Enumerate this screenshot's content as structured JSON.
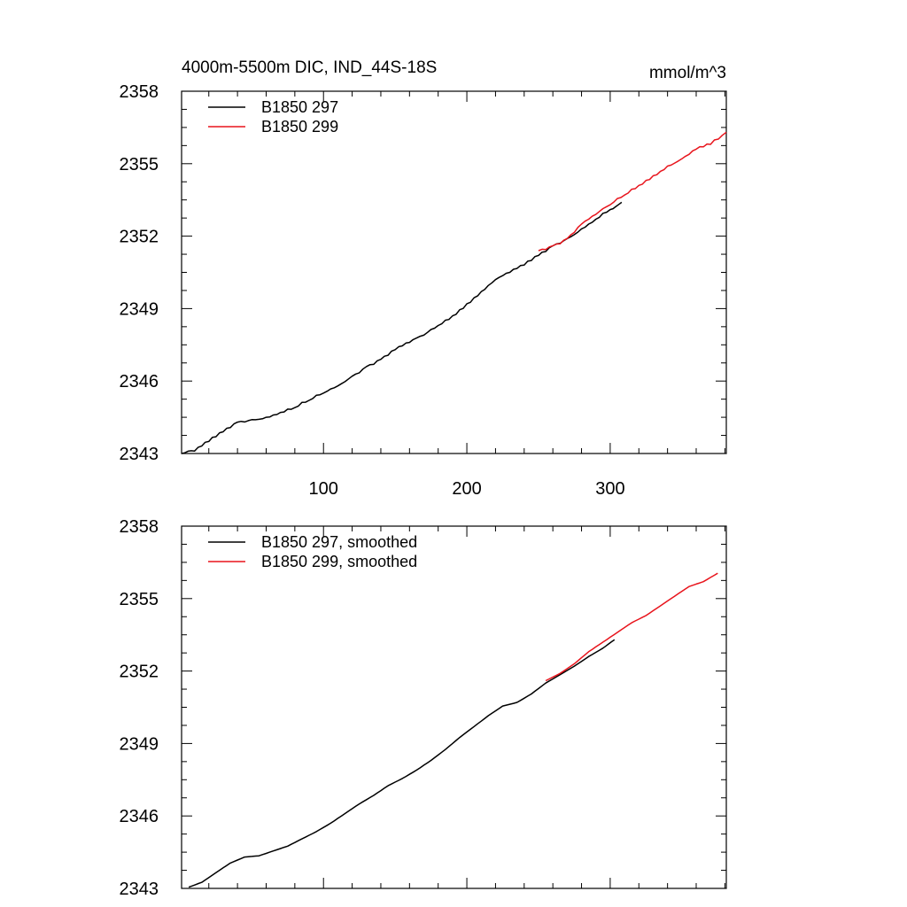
{
  "colors": {
    "run_297": "#000000",
    "run_299": "#e8141c"
  },
  "panels": [
    {
      "title_left": "4000m-5500m DIC, IND_44S-18S",
      "title_right": "mmol/m^3",
      "y_tick_labels": [
        "2343",
        "2346",
        "2349",
        "2352",
        "2355",
        "2358"
      ],
      "x_tick_labels": [
        "100",
        "200",
        "300"
      ],
      "legend": [
        "B1850 297",
        "B1850 299"
      ]
    },
    {
      "title_left": "",
      "title_right": "",
      "y_tick_labels": [
        "2343",
        "2346",
        "2349",
        "2352",
        "2355",
        "2358"
      ],
      "x_tick_labels": [],
      "legend": [
        "B1850 297, smoothed",
        "B1850 299, smoothed"
      ]
    }
  ],
  "chart_data": [
    {
      "type": "line",
      "title": "4000m-5500m DIC, IND_44S-18S",
      "units": "mmol/m^3",
      "xlim": [
        1,
        381
      ],
      "ylim": [
        2343,
        2358
      ],
      "x_ticks": [
        100,
        200,
        300
      ],
      "y_ticks": [
        2343,
        2346,
        2349,
        2352,
        2355,
        2358
      ],
      "legend_position": "top-left",
      "series": [
        {
          "name": "B1850 297",
          "color": "#000000",
          "x": [
            1,
            10,
            20,
            30,
            40,
            50,
            60,
            70,
            80,
            90,
            100,
            110,
            120,
            130,
            140,
            150,
            160,
            170,
            180,
            190,
            200,
            210,
            220,
            230,
            240,
            250,
            260,
            270,
            280,
            290,
            300,
            308
          ],
          "y": [
            2343.0,
            2343.1,
            2343.5,
            2343.9,
            2344.3,
            2344.4,
            2344.5,
            2344.7,
            2344.9,
            2345.2,
            2345.5,
            2345.8,
            2346.2,
            2346.6,
            2346.9,
            2347.3,
            2347.6,
            2347.9,
            2348.3,
            2348.7,
            2349.2,
            2349.7,
            2350.2,
            2350.5,
            2350.8,
            2351.2,
            2351.6,
            2351.9,
            2352.3,
            2352.7,
            2353.1,
            2353.4
          ]
        },
        {
          "name": "B1850 299",
          "color": "#e8141c",
          "x": [
            250,
            260,
            270,
            280,
            290,
            300,
            310,
            320,
            330,
            340,
            350,
            360,
            370,
            381
          ],
          "y": [
            2351.4,
            2351.6,
            2351.9,
            2352.5,
            2352.9,
            2353.3,
            2353.7,
            2354.1,
            2354.5,
            2354.9,
            2355.2,
            2355.6,
            2355.8,
            2356.3
          ]
        }
      ]
    },
    {
      "type": "line",
      "xlim": [
        1,
        381
      ],
      "ylim": [
        2343,
        2358
      ],
      "x_ticks": [
        100,
        200,
        300
      ],
      "y_ticks": [
        2343,
        2346,
        2349,
        2352,
        2355,
        2358
      ],
      "legend_position": "top-left",
      "series": [
        {
          "name": "B1850 297, smoothed",
          "color": "#000000",
          "x": [
            6,
            15,
            25,
            35,
            45,
            55,
            65,
            75,
            85,
            95,
            105,
            115,
            125,
            135,
            145,
            155,
            165,
            175,
            185,
            195,
            205,
            215,
            225,
            235,
            245,
            255,
            265,
            275,
            285,
            295,
            303
          ],
          "y": [
            2343.05,
            2343.25,
            2343.65,
            2344.05,
            2344.3,
            2344.35,
            2344.55,
            2344.75,
            2345.05,
            2345.35,
            2345.7,
            2346.1,
            2346.5,
            2346.85,
            2347.25,
            2347.55,
            2347.9,
            2348.3,
            2348.75,
            2349.25,
            2349.7,
            2350.15,
            2350.55,
            2350.7,
            2351.05,
            2351.5,
            2351.85,
            2352.2,
            2352.6,
            2352.95,
            2353.3
          ]
        },
        {
          "name": "B1850 299, smoothed",
          "color": "#e8141c",
          "x": [
            255,
            265,
            275,
            285,
            295,
            305,
            315,
            325,
            335,
            345,
            355,
            365,
            375
          ],
          "y": [
            2351.6,
            2351.9,
            2352.3,
            2352.8,
            2353.2,
            2353.6,
            2354.0,
            2354.3,
            2354.7,
            2355.1,
            2355.5,
            2355.7,
            2356.05
          ]
        }
      ]
    }
  ]
}
